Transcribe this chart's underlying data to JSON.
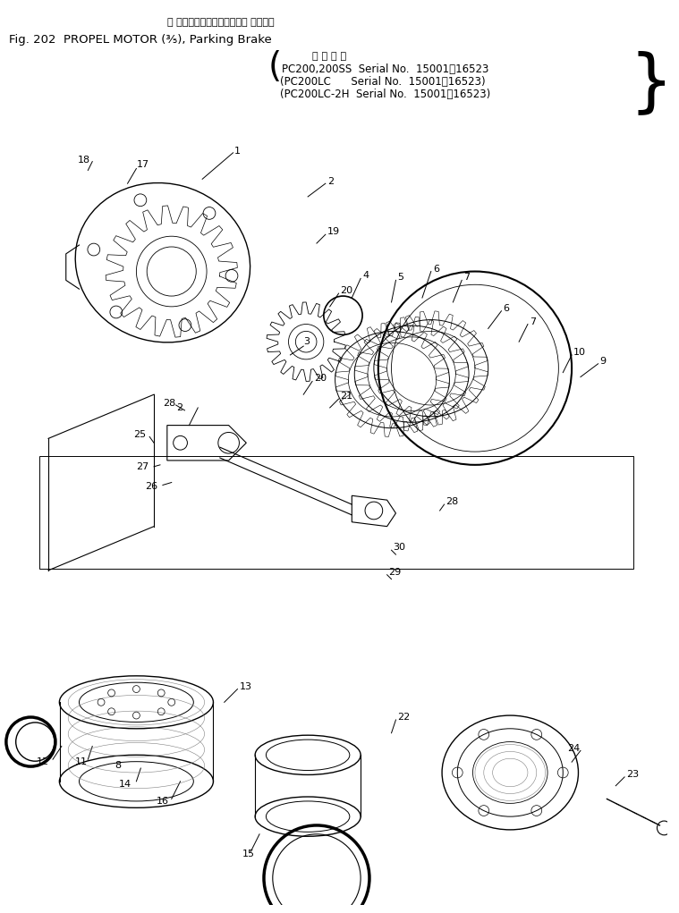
{
  "title_japanese": "走 行　モータ　　パーキング ブレーキ",
  "title_english": "Fig. 202  PROPEL MOTOR (⁴⁵), Parking Brake",
  "serial_header": "適 用 号 機",
  "serial_lines": [
    "PC200,200SS  Serial No.  15001～16523）",
    "（PC200LC     Serial No.  15001～16523）",
    "（PC200LC-2H  Serial No.  15001～16523）"
  ],
  "serial_open": "（",
  "fig_label": "Fig. 202",
  "propel_label": "PROPEL MOTOR (⁵₃), Parking Brake",
  "background_color": "#ffffff",
  "text_color": "#000000",
  "figsize": [
    7.59,
    10.21
  ],
  "dpi": 100
}
